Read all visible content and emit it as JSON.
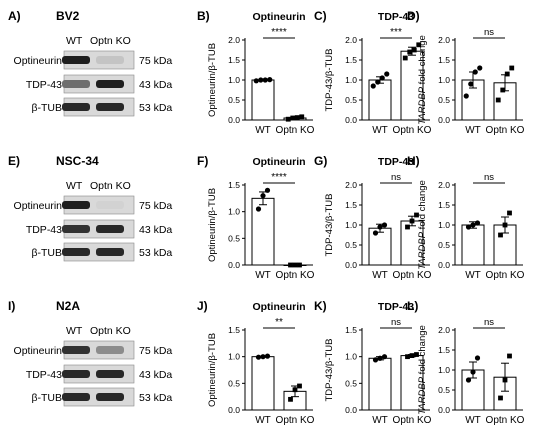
{
  "rows": [
    {
      "blot": {
        "panel_letter": "A)",
        "cell_line": "BV2",
        "lane_labels": [
          "WT",
          "Optn KO"
        ],
        "proteins": [
          {
            "name": "Optineurin",
            "size": "75 kDa",
            "intensity": [
              0.95,
              0.12
            ]
          },
          {
            "name": "TDP-43",
            "size": "43 kDa",
            "intensity": [
              0.55,
              0.95
            ]
          },
          {
            "name": "β-TUB",
            "size": "53 kDa",
            "intensity": [
              0.9,
              0.9
            ]
          }
        ]
      },
      "charts": [
        {
          "letter": "B)",
          "title": "Optineurin",
          "ylabel": "Optineurin/β-TUB",
          "yticks": [
            "0.0",
            "0.5",
            "1.0",
            "1.5",
            "2.0"
          ],
          "ylim": [
            0,
            2
          ],
          "categories": [
            "WT",
            "Optn KO"
          ],
          "values": [
            1.0,
            0.05
          ],
          "errors": [
            0.02,
            0.03
          ],
          "points": [
            [
              0.98,
              1.0,
              1.0,
              1.01
            ],
            [
              0.02,
              0.05,
              0.06,
              0.08
            ]
          ],
          "markers": [
            "circle",
            "square"
          ],
          "significance": "****",
          "italic_ylabel": false
        },
        {
          "letter": "C)",
          "title": "TDP-43",
          "ylabel": "TDP-43/β-TUB",
          "yticks": [
            "0.0",
            "0.5",
            "1.0",
            "1.5",
            "2.0"
          ],
          "ylim": [
            0,
            2
          ],
          "categories": [
            "WT",
            "Optn KO"
          ],
          "values": [
            1.0,
            1.72
          ],
          "errors": [
            0.08,
            0.1
          ],
          "points": [
            [
              0.85,
              0.95,
              1.05,
              1.15
            ],
            [
              1.55,
              1.7,
              1.75,
              1.88
            ]
          ],
          "markers": [
            "circle",
            "square"
          ],
          "significance": "***",
          "italic_ylabel": false
        },
        {
          "letter": "D)",
          "title": "",
          "ylabel": "TARDBP fold change",
          "yticks": [
            "0.0",
            "0.5",
            "1.0",
            "1.5",
            "2.0"
          ],
          "ylim": [
            0,
            2
          ],
          "categories": [
            "WT",
            "Optn KO"
          ],
          "values": [
            1.0,
            0.93
          ],
          "errors": [
            0.2,
            0.2
          ],
          "points": [
            [
              0.6,
              0.9,
              1.2,
              1.3
            ],
            [
              0.5,
              0.75,
              1.15,
              1.3
            ]
          ],
          "markers": [
            "circle",
            "square"
          ],
          "significance": "ns",
          "italic_ylabel": true
        }
      ]
    },
    {
      "blot": {
        "panel_letter": "E)",
        "cell_line": "NSC-34",
        "lane_labels": [
          "WT",
          "Optn KO"
        ],
        "proteins": [
          {
            "name": "Optineurin",
            "size": "75 kDa",
            "intensity": [
              0.95,
              0.05
            ]
          },
          {
            "name": "TDP-43",
            "size": "43 kDa",
            "intensity": [
              0.85,
              0.9
            ]
          },
          {
            "name": "β-TUB",
            "size": "53 kDa",
            "intensity": [
              0.9,
              0.9
            ]
          }
        ]
      },
      "charts": [
        {
          "letter": "F)",
          "title": "Optineurin",
          "ylabel": "Optineurin/β-TUB",
          "yticks": [
            "0.0",
            "0.5",
            "1.0",
            "1.5"
          ],
          "ylim": [
            0,
            1.5
          ],
          "categories": [
            "WT",
            "Optn KO"
          ],
          "values": [
            1.25,
            0.0
          ],
          "errors": [
            0.12,
            0.0
          ],
          "points": [
            [
              1.05,
              1.3,
              1.4
            ],
            [
              0.0,
              0.0,
              0.0
            ]
          ],
          "markers": [
            "circle",
            "square"
          ],
          "significance": "****",
          "italic_ylabel": false
        },
        {
          "letter": "G)",
          "title": "TDP-43",
          "ylabel": "TDP-43/β-TUB",
          "yticks": [
            "0.0",
            "0.5",
            "1.0",
            "1.5",
            "2.0"
          ],
          "ylim": [
            0,
            2
          ],
          "categories": [
            "WT",
            "Optn KO"
          ],
          "values": [
            0.92,
            1.1
          ],
          "errors": [
            0.1,
            0.12
          ],
          "points": [
            [
              0.8,
              0.95,
              1.0
            ],
            [
              0.95,
              1.1,
              1.25
            ]
          ],
          "markers": [
            "circle",
            "square"
          ],
          "significance": "ns",
          "italic_ylabel": false
        },
        {
          "letter": "H)",
          "title": "",
          "ylabel": "TARDBP fold change",
          "yticks": [
            "0.0",
            "0.5",
            "1.0",
            "1.5",
            "2.0"
          ],
          "ylim": [
            0,
            2
          ],
          "categories": [
            "WT",
            "Optn KO"
          ],
          "values": [
            1.0,
            1.0
          ],
          "errors": [
            0.08,
            0.2
          ],
          "points": [
            [
              0.95,
              1.0,
              1.05
            ],
            [
              0.75,
              1.0,
              1.3
            ]
          ],
          "markers": [
            "circle",
            "square"
          ],
          "significance": "ns",
          "italic_ylabel": true
        }
      ]
    },
    {
      "blot": {
        "panel_letter": "I)",
        "cell_line": "N2A",
        "lane_labels": [
          "WT",
          "Optn KO"
        ],
        "proteins": [
          {
            "name": "Optineurin",
            "size": "75 kDa",
            "intensity": [
              0.85,
              0.4
            ]
          },
          {
            "name": "TDP-43",
            "size": "43 kDa",
            "intensity": [
              0.9,
              0.9
            ]
          },
          {
            "name": "β-TUB",
            "size": "53 kDa",
            "intensity": [
              0.9,
              0.9
            ]
          }
        ]
      },
      "charts": [
        {
          "letter": "J)",
          "title": "Optineurin",
          "ylabel": "Optineurin/β-TUB",
          "yticks": [
            "0.0",
            "0.5",
            "1.0",
            "1.5"
          ],
          "ylim": [
            0,
            1.5
          ],
          "categories": [
            "WT",
            "Optn KO"
          ],
          "values": [
            1.0,
            0.35
          ],
          "errors": [
            0.01,
            0.1
          ],
          "points": [
            [
              0.99,
              1.0,
              1.01
            ],
            [
              0.2,
              0.38,
              0.45
            ]
          ],
          "markers": [
            "circle",
            "square"
          ],
          "significance": "**",
          "italic_ylabel": false
        },
        {
          "letter": "K)",
          "title": "TDP-43",
          "ylabel": "TDP-43/β-TUB",
          "yticks": [
            "0.0",
            "0.5",
            "1.0",
            "1.5"
          ],
          "ylim": [
            0,
            1.5
          ],
          "categories": [
            "WT",
            "Optn KO"
          ],
          "values": [
            0.97,
            1.02
          ],
          "errors": [
            0.03,
            0.02
          ],
          "points": [
            [
              0.94,
              0.97,
              1.0
            ],
            [
              1.0,
              1.02,
              1.04
            ]
          ],
          "markers": [
            "circle",
            "square"
          ],
          "significance": "ns",
          "italic_ylabel": false
        },
        {
          "letter": "L)",
          "title": "",
          "ylabel": "TARDBP fold change",
          "yticks": [
            "0.0",
            "0.5",
            "1.0",
            "1.5",
            "2.0"
          ],
          "ylim": [
            0,
            2
          ],
          "categories": [
            "WT",
            "Optn KO"
          ],
          "values": [
            1.0,
            0.82
          ],
          "errors": [
            0.2,
            0.35
          ],
          "points": [
            [
              0.75,
              0.95,
              1.3
            ],
            [
              0.3,
              0.75,
              1.35
            ]
          ],
          "markers": [
            "circle",
            "square"
          ],
          "significance": "ns",
          "italic_ylabel": true
        }
      ]
    }
  ],
  "chart_data": [
    {
      "panel": "B)",
      "type": "bar",
      "title": "Optineurin",
      "ylabel": "Optineurin/β-TUB",
      "categories": [
        "WT",
        "Optn KO"
      ],
      "values": [
        1.0,
        0.05
      ],
      "ylim": [
        0,
        2
      ]
    },
    {
      "panel": "C)",
      "type": "bar",
      "title": "TDP-43",
      "ylabel": "TDP-43/β-TUB",
      "categories": [
        "WT",
        "Optn KO"
      ],
      "values": [
        1.0,
        1.72
      ],
      "ylim": [
        0,
        2
      ]
    },
    {
      "panel": "D)",
      "type": "bar",
      "title": "",
      "ylabel": "TARDBP fold change",
      "categories": [
        "WT",
        "Optn KO"
      ],
      "values": [
        1.0,
        0.93
      ],
      "ylim": [
        0,
        2
      ]
    },
    {
      "panel": "F)",
      "type": "bar",
      "title": "Optineurin",
      "ylabel": "Optineurin/β-TUB",
      "categories": [
        "WT",
        "Optn KO"
      ],
      "values": [
        1.25,
        0.0
      ],
      "ylim": [
        0,
        1.5
      ]
    },
    {
      "panel": "G)",
      "type": "bar",
      "title": "TDP-43",
      "ylabel": "TDP-43/β-TUB",
      "categories": [
        "WT",
        "Optn KO"
      ],
      "values": [
        0.92,
        1.1
      ],
      "ylim": [
        0,
        2
      ]
    },
    {
      "panel": "H)",
      "type": "bar",
      "title": "",
      "ylabel": "TARDBP fold change",
      "categories": [
        "WT",
        "Optn KO"
      ],
      "values": [
        1.0,
        1.0
      ],
      "ylim": [
        0,
        2
      ]
    },
    {
      "panel": "J)",
      "type": "bar",
      "title": "Optineurin",
      "ylabel": "Optineurin/β-TUB",
      "categories": [
        "WT",
        "Optn KO"
      ],
      "values": [
        1.0,
        0.35
      ],
      "ylim": [
        0,
        1.5
      ]
    },
    {
      "panel": "K)",
      "type": "bar",
      "title": "TDP-43",
      "ylabel": "TDP-43/β-TUB",
      "categories": [
        "WT",
        "Optn KO"
      ],
      "values": [
        0.97,
        1.02
      ],
      "ylim": [
        0,
        1.5
      ]
    },
    {
      "panel": "L)",
      "type": "bar",
      "title": "",
      "ylabel": "TARDBP fold change",
      "categories": [
        "WT",
        "Optn KO"
      ],
      "values": [
        1.0,
        0.82
      ],
      "ylim": [
        0,
        2
      ]
    }
  ]
}
